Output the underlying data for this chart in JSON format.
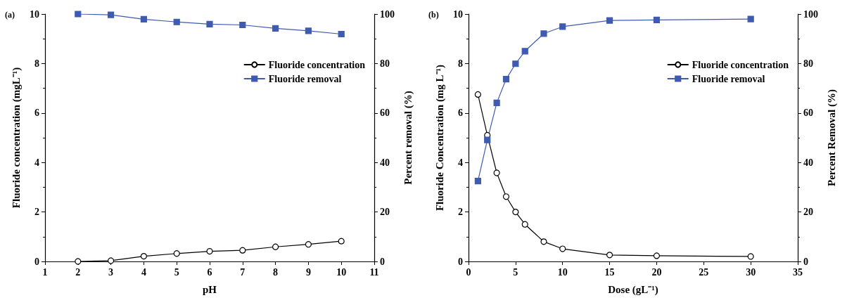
{
  "chart_data": [
    {
      "type": "line",
      "title": "(a)",
      "xlabel": "pH",
      "ylabel": "Fluoride concentration (mgL⁻¹)",
      "y2label": "Percent removal (%)",
      "x": [
        2,
        3,
        4,
        5,
        6,
        7,
        8,
        9,
        10
      ],
      "xlim": [
        1,
        11
      ],
      "xticks": [
        1,
        2,
        3,
        4,
        5,
        6,
        7,
        8,
        9,
        10,
        11
      ],
      "ylim": [
        0,
        10
      ],
      "yticks": [
        0,
        2,
        4,
        6,
        8,
        10
      ],
      "y2lim": [
        0,
        100
      ],
      "y2ticks": [
        0,
        20,
        40,
        60,
        80,
        100
      ],
      "legend": "top right",
      "grid": false,
      "series": [
        {
          "name": "Fluoride concentration",
          "color": "#000000",
          "marker": "circle",
          "values": [
            0,
            0.03,
            0.21,
            0.32,
            0.41,
            0.45,
            0.59,
            0.69,
            0.82
          ]
        },
        {
          "name": "Fluoride removal",
          "color": "#3f5bb0",
          "marker": "square",
          "axis": "y2",
          "values": [
            100,
            99.7,
            97.9,
            96.8,
            95.9,
            95.6,
            94.2,
            93.2,
            91.9
          ]
        }
      ]
    },
    {
      "type": "line",
      "title": "(b)",
      "xlabel": "Dose (gL⁻¹)",
      "ylabel": "Fluoride Concentration (mg L⁻¹)",
      "y2label": "Percent Removal (%)",
      "x": [
        1,
        2,
        3,
        4,
        5,
        6,
        8,
        10,
        15,
        20,
        30
      ],
      "xlim": [
        0,
        35
      ],
      "xticks": [
        0,
        5,
        10,
        15,
        20,
        25,
        30,
        35
      ],
      "ylim": [
        0,
        10
      ],
      "yticks": [
        0,
        2,
        4,
        6,
        8,
        10
      ],
      "y2lim": [
        0,
        100
      ],
      "y2ticks": [
        0,
        20,
        40,
        60,
        80,
        100
      ],
      "legend": "top right",
      "grid": false,
      "series": [
        {
          "name": "Fluoride concentration",
          "color": "#000000",
          "marker": "circle",
          "values": [
            6.75,
            5.1,
            3.58,
            2.62,
            2.0,
            1.5,
            0.8,
            0.51,
            0.26,
            0.23,
            0.2
          ]
        },
        {
          "name": "Fluoride removal",
          "color": "#3f5bb0",
          "marker": "square",
          "axis": "y2",
          "values": [
            32.5,
            49.1,
            64.1,
            73.7,
            79.9,
            85.0,
            92.1,
            94.9,
            97.4,
            97.6,
            98.0
          ]
        }
      ]
    }
  ]
}
